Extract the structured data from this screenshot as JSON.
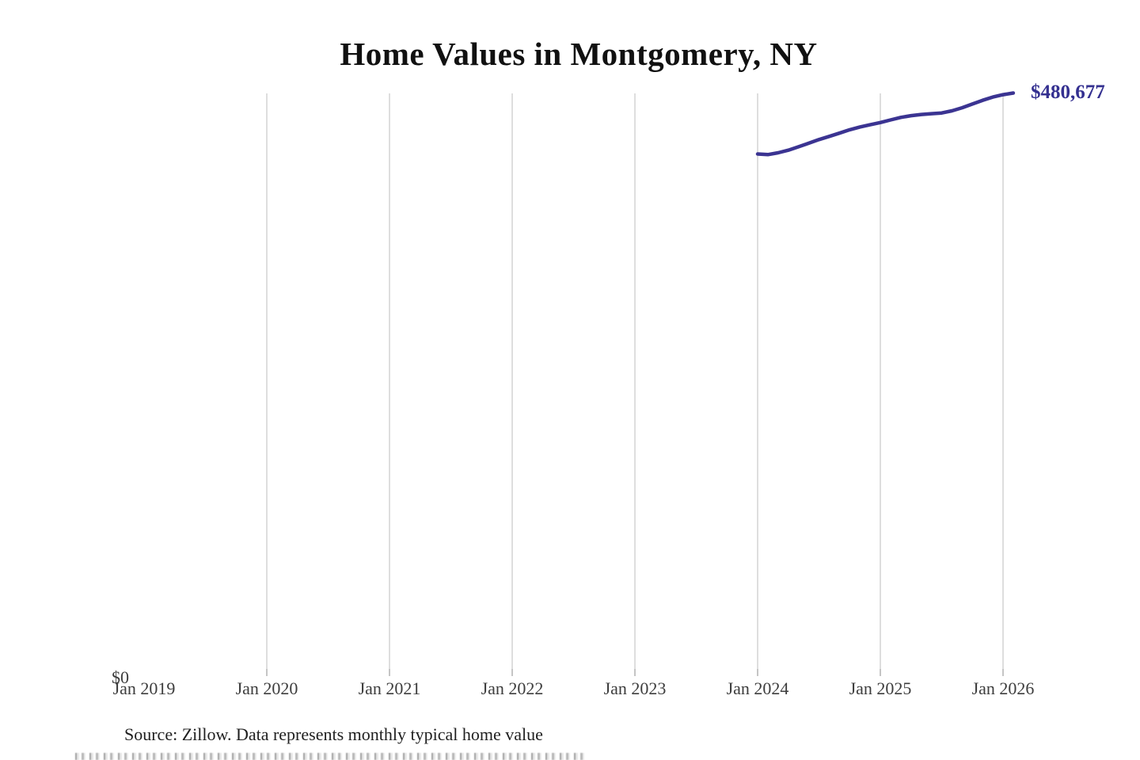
{
  "title": "Home Values in Montgomery, NY",
  "source": "Source: Zillow. Data represents monthly typical home value",
  "colors": {
    "line": "#3b3492",
    "end_label": "#343090",
    "gridline": "#cccccc",
    "tick": "#a6a6a6",
    "axis_text": "#3d3d3d",
    "title_text": "#111111",
    "source_text": "#1f1f1f",
    "background": "#ffffff"
  },
  "chart_data": {
    "type": "line",
    "title": "Home Values in Montgomery, NY",
    "xlabel": "",
    "ylabel": "",
    "grid": "vertical",
    "legend": "none",
    "x_axis": {
      "tick_labels": [
        "Jan 2019",
        "Jan 2020",
        "Jan 2021",
        "Jan 2022",
        "Jan 2023",
        "Jan 2024",
        "Jan 2025",
        "Jan 2026"
      ],
      "gridlines_at": [
        "Jan 2020",
        "Jan 2021",
        "Jan 2022",
        "Jan 2023",
        "Jan 2024",
        "Jan 2025",
        "Jan 2026"
      ]
    },
    "y_axis": {
      "zero_label": "$0",
      "range_usd": [
        0,
        480677
      ]
    },
    "series": [
      {
        "name": "Monthly typical home value (USD)",
        "months": [
          "2024-01",
          "2024-02",
          "2024-03",
          "2024-04",
          "2024-05",
          "2024-06",
          "2024-07",
          "2024-08",
          "2024-09",
          "2024-10",
          "2024-11",
          "2024-12",
          "2025-01",
          "2025-02",
          "2025-03",
          "2025-04",
          "2025-05",
          "2025-06",
          "2025-07",
          "2025-08",
          "2025-09",
          "2025-10",
          "2025-11",
          "2025-12",
          "2026-01",
          "2026-02"
        ],
        "values": [
          429800,
          429300,
          430800,
          433000,
          435800,
          438800,
          441800,
          444500,
          447200,
          450000,
          452300,
          454200,
          456000,
          458200,
          460300,
          461800,
          462800,
          463400,
          464000,
          465800,
          468400,
          471500,
          474600,
          477300,
          479300,
          480677
        ],
        "end_value": 480677,
        "end_value_label": "$480,677",
        "color": "#3b3492"
      }
    ],
    "annotations": [
      {
        "text": "$480,677",
        "position": "line-end"
      }
    ]
  }
}
